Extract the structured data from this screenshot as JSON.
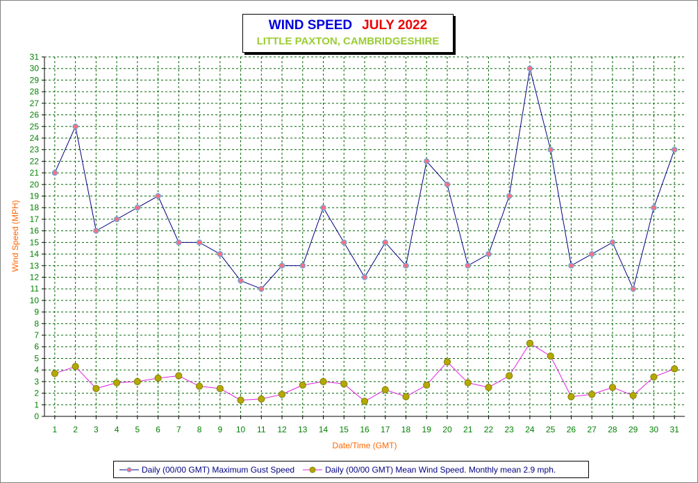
{
  "chart_data": {
    "type": "line",
    "title_part1": "WIND SPEED",
    "title_part2": "JULY 2022",
    "subtitle": "LITTLE PAXTON, CAMBRIDGESHIRE",
    "xlabel": "Date/Time (GMT)",
    "ylabel": "Wind Speed (MPH)",
    "ylim": [
      0,
      31
    ],
    "y_ticks": [
      0,
      1,
      2,
      3,
      4,
      5,
      6,
      7,
      8,
      9,
      10,
      11,
      12,
      13,
      14,
      15,
      16,
      17,
      18,
      19,
      20,
      21,
      22,
      23,
      24,
      25,
      26,
      27,
      28,
      29,
      30,
      31
    ],
    "categories": [
      "1",
      "2",
      "3",
      "4",
      "5",
      "6",
      "7",
      "8",
      "9",
      "10",
      "11",
      "12",
      "13",
      "14",
      "15",
      "16",
      "17",
      "18",
      "19",
      "20",
      "21",
      "22",
      "23",
      "24",
      "25",
      "26",
      "27",
      "28",
      "29",
      "30",
      "31"
    ],
    "grid": true,
    "legend_position": "bottom",
    "series": [
      {
        "name": "Daily (00/00 GMT) Maximum Gust Speed",
        "line_color": "#000080",
        "marker_color": "#ff6f7f",
        "marker_edge": "#6fa8dc",
        "values": [
          21,
          25,
          16,
          17,
          18,
          19,
          15,
          15,
          14,
          11.7,
          11,
          13,
          13,
          18,
          15,
          12,
          15,
          13,
          22,
          20,
          13,
          14,
          19,
          30,
          23,
          13,
          14,
          15,
          11,
          18,
          23
        ]
      },
      {
        "name": "Daily (00/00 GMT) Mean Wind Speed. Monthly mean 2.9 mph.",
        "line_color": "#e020e0",
        "marker_color": "#b5a800",
        "marker_edge": "#808000",
        "values": [
          3.7,
          4.3,
          2.4,
          2.9,
          3.0,
          3.3,
          3.5,
          2.6,
          2.4,
          1.4,
          1.5,
          1.9,
          2.7,
          3.0,
          2.8,
          1.3,
          2.3,
          1.7,
          2.7,
          4.7,
          2.9,
          2.5,
          3.5,
          6.3,
          5.2,
          1.7,
          1.9,
          2.5,
          1.8,
          3.4,
          4.1
        ]
      }
    ]
  },
  "colors": {
    "axis_tick_text": "#008000",
    "axis_label_text": "#ff6600",
    "grid": "#006400"
  }
}
